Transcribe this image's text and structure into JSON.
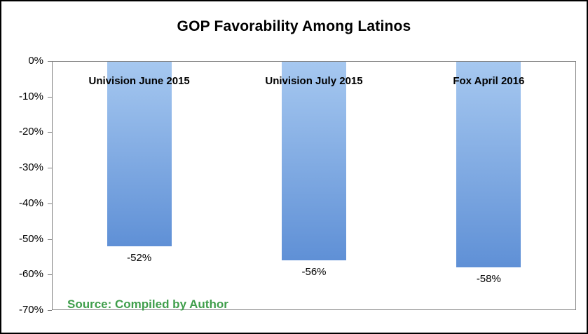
{
  "chart_data": {
    "type": "bar",
    "title": "GOP Favorability Among Latinos",
    "categories": [
      "Univision June 2015",
      "Univision July 2015",
      "Fox April 2016"
    ],
    "values": [
      -52,
      -56,
      -58
    ],
    "value_labels": [
      "-52%",
      "-56%",
      "-58%"
    ],
    "y_ticks": [
      "0%",
      "-10%",
      "-20%",
      "-30%",
      "-40%",
      "-50%",
      "-60%",
      "-70%"
    ],
    "ylim": [
      -70,
      0
    ],
    "grid": "off",
    "legend": "none",
    "xlabel": "",
    "ylabel": "",
    "bar_color_top": "#a6c8f0",
    "bar_color_bottom": "#5f90d6",
    "source": "Source: Compiled by Author",
    "source_color": "#3f9e4b"
  }
}
